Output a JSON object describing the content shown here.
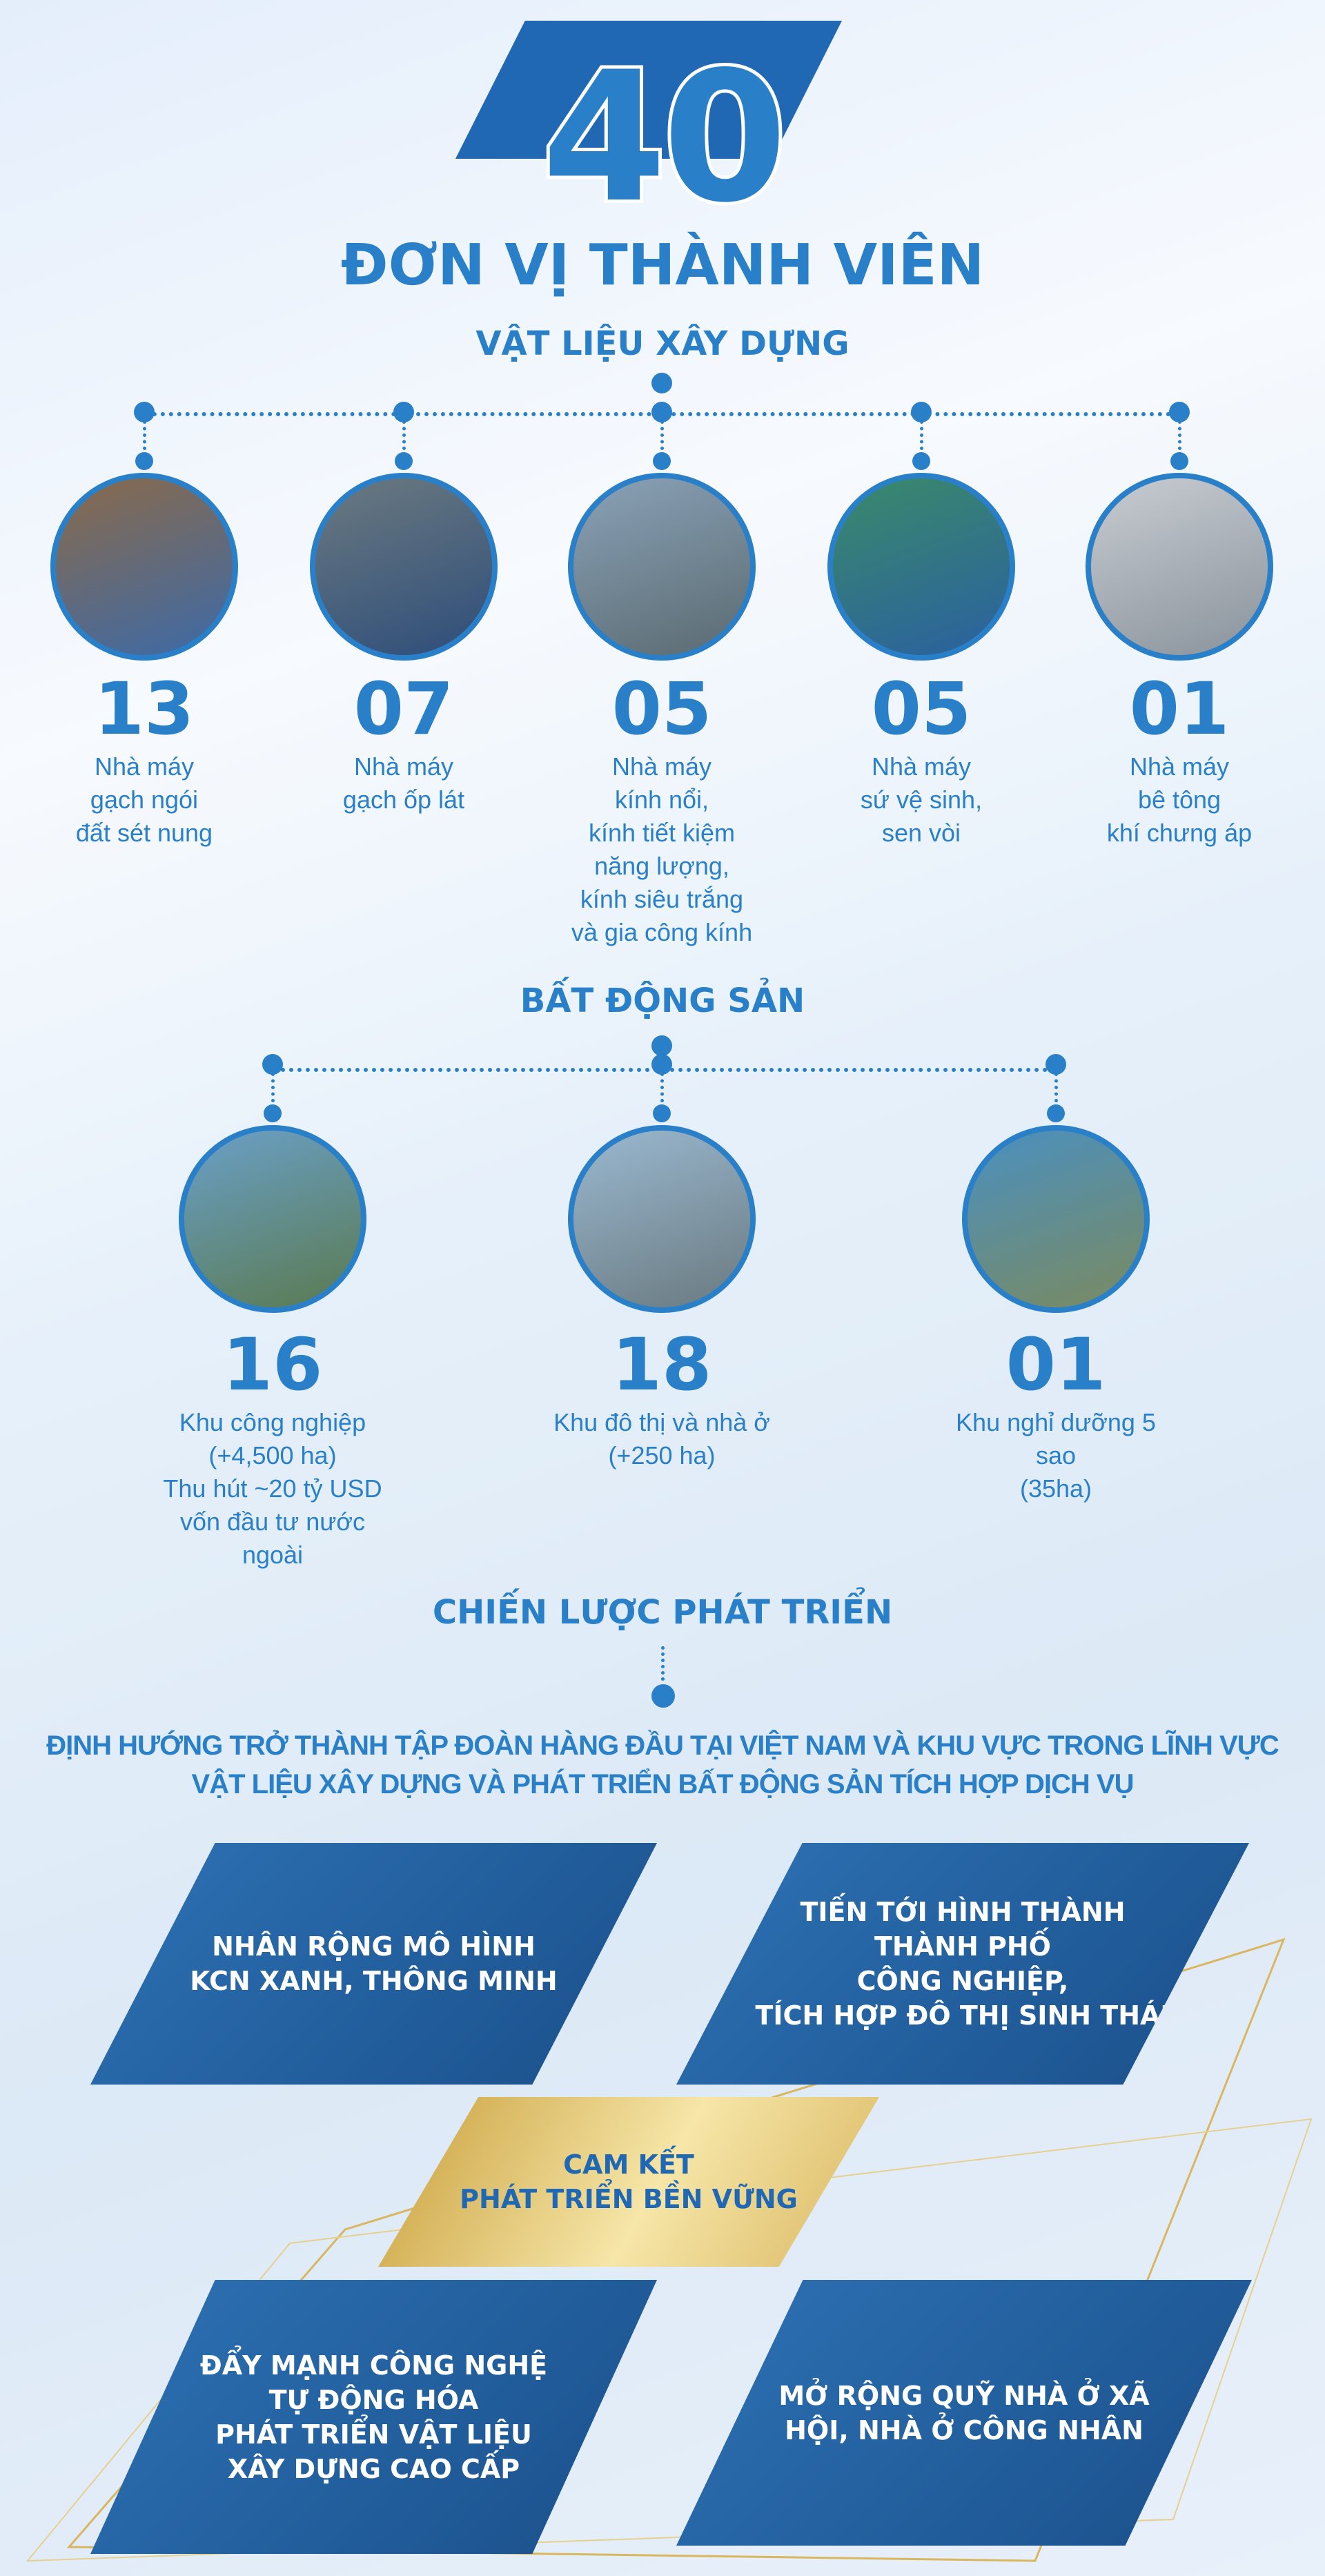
{
  "header": {
    "number": "40",
    "title": "ĐƠN VỊ THÀNH VIÊN"
  },
  "materials": {
    "heading": "VẬT LIỆU XÂY DỰNG",
    "items": [
      {
        "count": "13",
        "desc": "Nhà máy\ngạch ngói\nđất sét nung",
        "image": "brick-factory-photo"
      },
      {
        "count": "07",
        "desc": "Nhà máy\ngạch ốp lát",
        "image": "tile-factory-photo"
      },
      {
        "count": "05",
        "desc": "Nhà máy\nkính nổi,\nkính tiết kiệm\nnăng lượng,\nkính siêu trắng\nvà gia công kính",
        "image": "glass-factory-photo"
      },
      {
        "count": "05",
        "desc": "Nhà máy\nsứ vệ sinh,\nsen vòi",
        "image": "sanitary-factory-photo"
      },
      {
        "count": "01",
        "desc": "Nhà máy\nbê tông\nkhí chưng áp",
        "image": "concrete-factory-photo"
      }
    ]
  },
  "realestate": {
    "heading": "BẤT ĐỘNG SẢN",
    "items": [
      {
        "count": "16",
        "desc": "Khu công nghiệp\n(+4,500 ha)\nThu hút ~20 tỷ USD\nvốn đầu tư nước ngoài",
        "image": "industrial-park-photo"
      },
      {
        "count": "18",
        "desc": "Khu đô thị và nhà ở\n(+250 ha)",
        "image": "urban-area-photo"
      },
      {
        "count": "01",
        "desc": "Khu nghỉ dưỡng 5 sao\n(35ha)",
        "image": "resort-photo"
      }
    ]
  },
  "strategy": {
    "heading": "CHIẾN LƯỢC PHÁT TRIỂN",
    "subtitle_1": "ĐỊNH HƯỚNG TRỞ THÀNH TẬP ĐOÀN HÀNG ĐẦU TẠI VIỆT NAM VÀ KHU VỰC TRONG LĨNH VỰC",
    "subtitle_2": "VẬT LIỆU XÂY DỰNG VÀ PHÁT TRIỂN BẤT ĐỘNG SẢN TÍCH HỢP DỊCH VỤ",
    "top_left": "NHÂN RỘNG MÔ HÌNH\nKCN XANH, THÔNG MINH",
    "top_right": "TIẾN TỚI HÌNH THÀNH\nTHÀNH PHỐ\nCÔNG NGHIỆP,\nTÍCH HỢP ĐÔ THỊ SINH THÁI",
    "center_1": "CAM KẾT",
    "center_2": "PHÁT TRIỂN BỀN VỮNG",
    "bottom_left": "ĐẨY MẠNH CÔNG NGHỆ\nTỰ ĐỘNG HÓA\nPHÁT TRIỂN VẬT LIỆU\nXÂY DỰNG CAO CẤP",
    "bottom_right": "MỞ RỘNG QUỸ NHÀ Ở XÃ\nHỘI, NHÀ Ở CÔNG NHÂN"
  },
  "colors": {
    "primary": "#2a80c8",
    "dark": "#1a4f8a",
    "gold": "#d9b660"
  }
}
